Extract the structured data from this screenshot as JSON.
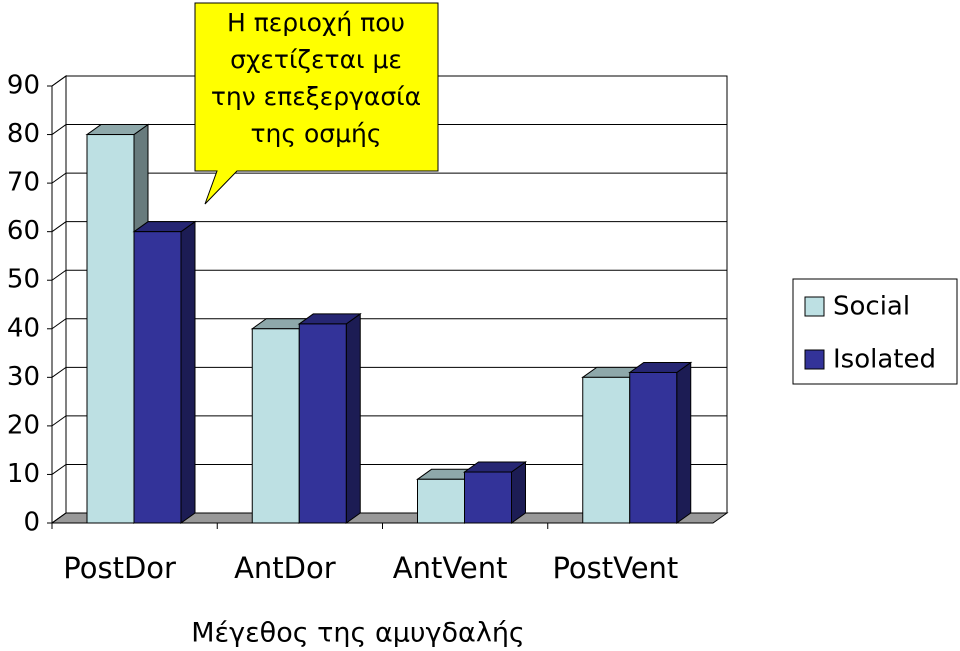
{
  "chart_data": {
    "type": "bar3d",
    "categories": [
      "PostDor",
      "AntDor",
      "AntVent",
      "PostVent"
    ],
    "series": [
      {
        "name": "Social",
        "color": "#bde0e3",
        "values": [
          80,
          40,
          9,
          30
        ]
      },
      {
        "name": "Isolated",
        "color": "#333399",
        "values": [
          60,
          41,
          10.5,
          31
        ]
      }
    ],
    "ylim": [
      0,
      90
    ],
    "yticks": [
      0,
      10,
      20,
      30,
      40,
      50,
      60,
      70,
      80,
      90
    ],
    "grid": true,
    "legend": "right",
    "x_label": "Μέγεθος της αμυγδαλής",
    "annotation": [
      "Η περιοχή που",
      "σχετίζεται με",
      "την επεξεργασία",
      "της οσμής"
    ]
  }
}
